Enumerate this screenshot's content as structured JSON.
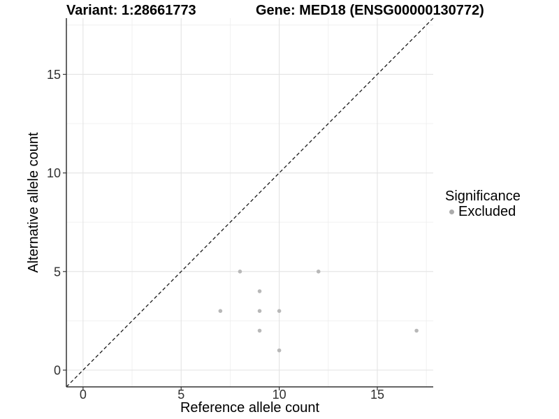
{
  "header": {
    "variant_title": "Variant: 1:28661773",
    "gene_title": "Gene: MED18 (ENSG00000130772)"
  },
  "chart_data": {
    "type": "scatter",
    "title_left": "Variant: 1:28661773",
    "title_right": "Gene: MED18 (ENSG00000130772)",
    "xlabel": "Reference allele count",
    "ylabel": "Alternative allele count",
    "xlim": [
      -0.85,
      17.85
    ],
    "ylim": [
      -0.85,
      17.85
    ],
    "xticks": [
      0,
      5,
      10,
      15
    ],
    "yticks": [
      0,
      5,
      10,
      15
    ],
    "xminor": [
      2.5,
      7.5,
      12.5,
      17.5
    ],
    "yminor": [
      2.5,
      7.5,
      12.5,
      17.5
    ],
    "grid": true,
    "series": [
      {
        "name": "Excluded",
        "marker": "circle",
        "color": "#B8B8B8",
        "points": [
          [
            7,
            3
          ],
          [
            8,
            5
          ],
          [
            9,
            2
          ],
          [
            9,
            3
          ],
          [
            9,
            4
          ],
          [
            10,
            1
          ],
          [
            10,
            3
          ],
          [
            12,
            5
          ],
          [
            17,
            2
          ]
        ]
      }
    ],
    "reference_line": {
      "type": "identity y=x",
      "linetype": "dashed",
      "color": "#1A1A1A"
    },
    "legend": {
      "title": "Significance",
      "position": "right",
      "entries": [
        {
          "label": "Excluded",
          "color": "#ABABAB"
        }
      ]
    }
  },
  "colors": {
    "background": "#FFFFFF",
    "grid_major": "#E3E3E3",
    "grid_minor": "#EFEFEF",
    "axis_line": "#333333",
    "tick_mark": "#333333",
    "tick_text": "#303030",
    "text": "#000000"
  }
}
